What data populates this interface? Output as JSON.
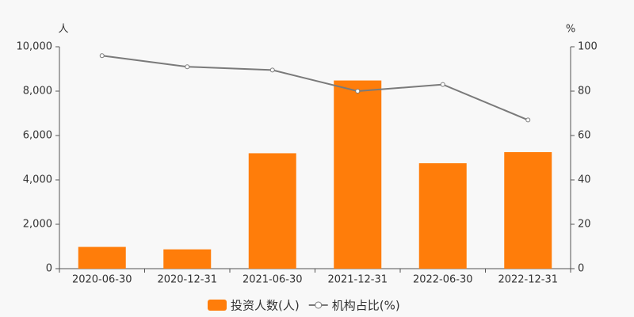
{
  "chart_data": {
    "type": "bar",
    "y_unit": "人",
    "y2_unit": "%",
    "categories": [
      "2020-06-30",
      "2020-12-31",
      "2021-06-30",
      "2021-12-31",
      "2022-06-30",
      "2022-12-31"
    ],
    "series": [
      {
        "name": "投资人数(人)",
        "type": "bar",
        "color": "#ff7d0a",
        "values": [
          980,
          870,
          5200,
          8480,
          4750,
          5250
        ]
      },
      {
        "name": "机构占比(%)",
        "type": "line",
        "axis": "y2",
        "color": "#7a7a7a",
        "values": [
          96,
          91,
          89.5,
          80,
          83,
          67
        ]
      }
    ],
    "ylim": [
      0,
      10000
    ],
    "yticks": [
      0,
      {
        "value": 2000,
        "label": "2,000"
      },
      {
        "value": 4000,
        "label": "4,000"
      },
      {
        "value": 6000,
        "label": "6,000"
      },
      {
        "value": 8000,
        "label": "8,000"
      },
      {
        "value": 10000,
        "label": "10,000"
      }
    ],
    "y2lim": [
      0,
      100
    ],
    "y2ticks": [
      0,
      20,
      40,
      60,
      80,
      100
    ],
    "grid": false
  }
}
